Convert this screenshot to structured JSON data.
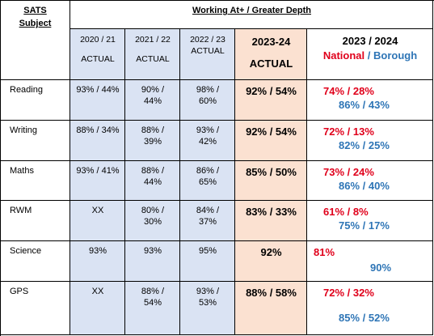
{
  "header": {
    "subject_line1": "SATS",
    "subject_line2": "Subject",
    "group_title": "Working At+ / Greater Depth"
  },
  "columns": [
    {
      "year": "2020 / 21",
      "label": "ACTUAL"
    },
    {
      "year": "2021 / 22",
      "label": "ACTUAL"
    },
    {
      "year": "2022 / 23",
      "label": "ACTUAL"
    },
    {
      "year": "2023-24",
      "label": "ACTUAL"
    },
    {
      "year": "2023 / 2024",
      "label_national": "National",
      "label_sep": " / ",
      "label_borough": "Borough"
    }
  ],
  "rows": [
    {
      "subject": "Reading",
      "y2021": "93% / 44%",
      "y2122_a": "90% /",
      "y2122_b": "44%",
      "y2223_a": "98% /",
      "y2223_b": "60%",
      "y2324": "92% / 54%",
      "national": "74% / 28%",
      "borough": "86% / 43%"
    },
    {
      "subject": "Writing",
      "y2021": "88% / 34%",
      "y2122_a": "88% /",
      "y2122_b": "39%",
      "y2223_a": "93% /",
      "y2223_b": "42%",
      "y2324": "92% / 54%",
      "national": "72% / 13%",
      "borough": "82% / 25%"
    },
    {
      "subject": "Maths",
      "y2021": "93% / 41%",
      "y2122_a": "88% /",
      "y2122_b": "44%",
      "y2223_a": "86% /",
      "y2223_b": "65%",
      "y2324": "85% / 50%",
      "national": "73% / 24%",
      "borough": "86% / 40%"
    },
    {
      "subject": "RWM",
      "y2021": "XX",
      "y2122_a": "80% /",
      "y2122_b": "30%",
      "y2223_a": "84% /",
      "y2223_b": "37%",
      "y2324": "83% / 33%",
      "national": "61% / 8%",
      "borough": "75% / 17%"
    },
    {
      "subject": "Science",
      "y2021": "93%",
      "y2122_a": "93%",
      "y2122_b": "",
      "y2223_a": "95%",
      "y2223_b": "",
      "y2324": "92%",
      "national": "81%",
      "borough": "90%"
    },
    {
      "subject": "GPS",
      "y2021": "XX",
      "y2122_a": "88% /",
      "y2122_b": "54%",
      "y2223_a": "93% /",
      "y2223_b": "53%",
      "y2324": "88% / 58%",
      "national": "72% / 32%",
      "borough": "85% / 52%"
    }
  ],
  "colors": {
    "national": "#e0001b",
    "borough": "#2e75b6",
    "actual_fill": "#dae3f3",
    "current_fill": "#fbe1d1"
  }
}
